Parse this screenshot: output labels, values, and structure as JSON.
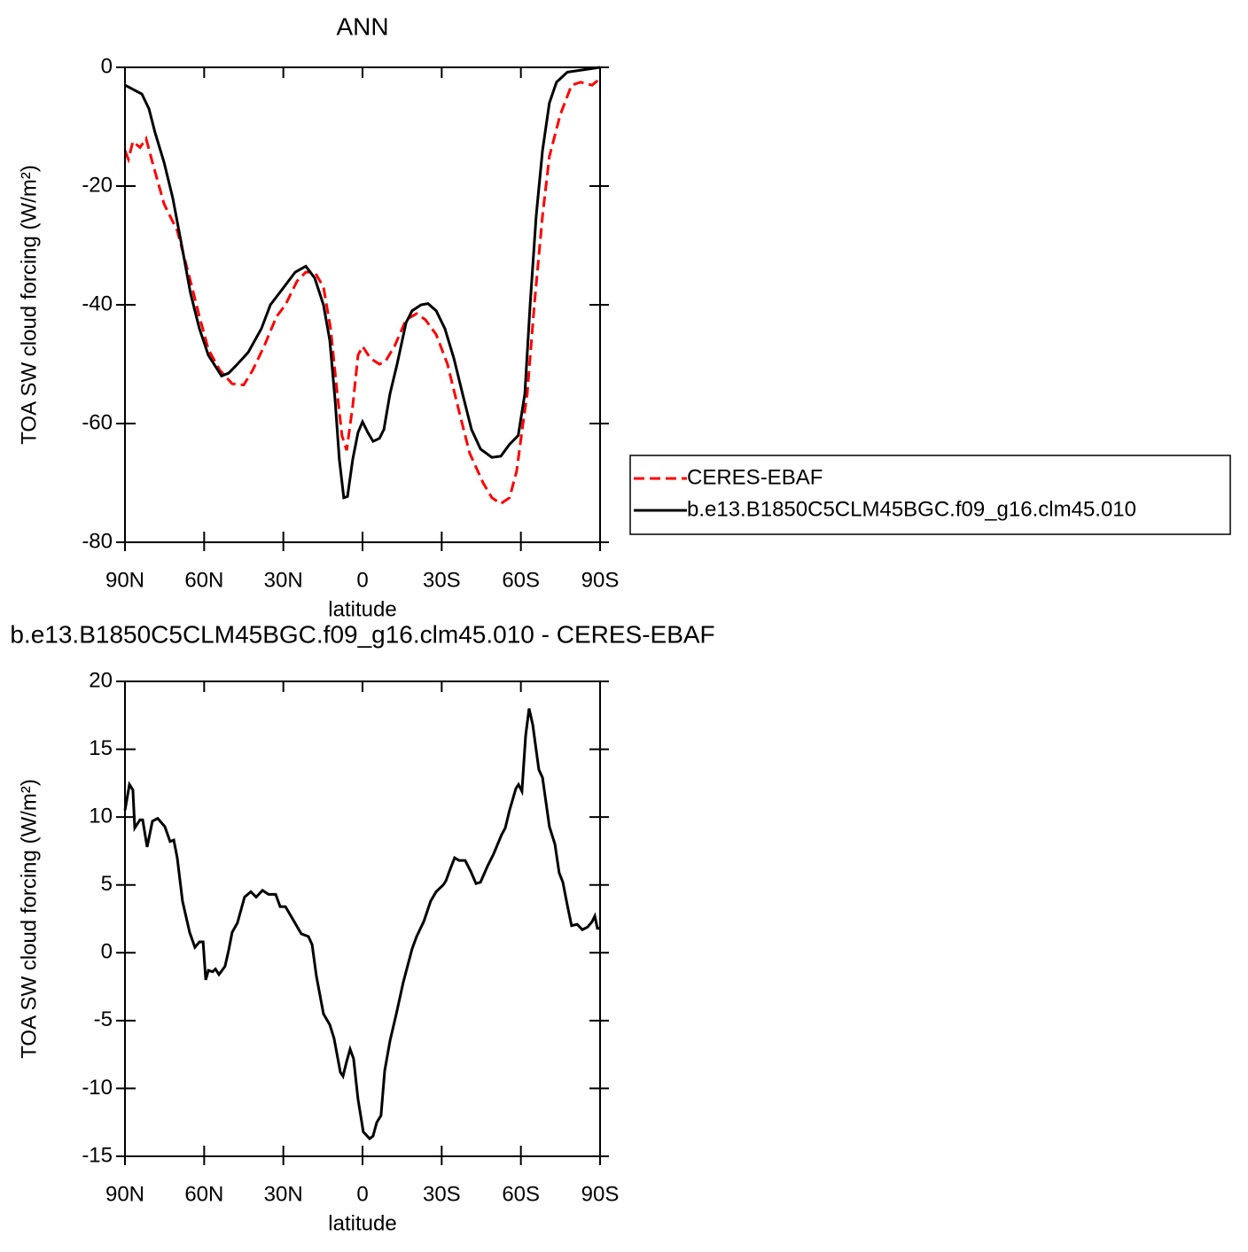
{
  "chart_data": [
    {
      "type": "line",
      "title": "ANN",
      "xlabel": "latitude",
      "ylabel": "TOA SW cloud forcing (W/m²)",
      "xlim": [
        90,
        -90
      ],
      "ylim": [
        -80,
        0
      ],
      "xticks": [
        {
          "value": 90,
          "label": "90N"
        },
        {
          "value": 60,
          "label": "60N"
        },
        {
          "value": 30,
          "label": "30N"
        },
        0,
        {
          "value": -30,
          "label": "30S"
        },
        {
          "value": -60,
          "label": "60S"
        },
        {
          "value": -90,
          "label": "90S"
        }
      ],
      "yticks": [
        0,
        -20,
        -40,
        -60,
        -80
      ],
      "legend": "right",
      "series": [
        {
          "name": "CERES-EBAF",
          "color": "#ff0000",
          "linestyle": "dashed",
          "x": [
            90,
            88.7,
            87,
            84.3,
            82,
            79.6,
            75.2,
            70.2,
            65.2,
            61.8,
            58.4,
            54.1,
            49.4,
            45,
            41.6,
            37.3,
            32.6,
            29.2,
            24.8,
            21.5,
            18.1,
            14.8,
            12.1,
            9.8,
            7.8,
            6,
            3.7,
            1.7,
            0,
            -3,
            -6.4,
            -8.7,
            -12.1,
            -16.5,
            -20.5,
            -23.8,
            -27.9,
            -32.2,
            -36.6,
            -40.6,
            -45.7,
            -49,
            -52.4,
            -55.7,
            -58.4,
            -60.8,
            -62.4,
            -65.1,
            -68.2,
            -70.8,
            -74.9,
            -79.2,
            -82.6,
            -87,
            -88.3,
            -90
          ],
          "values": [
            -14,
            -15.5,
            -12.5,
            -13.5,
            -12,
            -16,
            -23,
            -27.5,
            -36,
            -42,
            -47.5,
            -51,
            -53.3,
            -53.5,
            -51,
            -47,
            -42,
            -40,
            -36,
            -34.5,
            -34.5,
            -37,
            -44,
            -54,
            -62,
            -64.5,
            -57,
            -48.5,
            -47,
            -49,
            -50,
            -49.5,
            -47,
            -42.5,
            -41.5,
            -42.5,
            -45,
            -50,
            -58,
            -65,
            -70,
            -72.5,
            -73.5,
            -72.5,
            -68,
            -60,
            -55,
            -40,
            -25,
            -15,
            -8,
            -3,
            -2.5,
            -3,
            -2.5,
            -2
          ]
        },
        {
          "name": "b.e13.B1850C5CLM45BGC.f09_g16.clm45.010",
          "color": "#000000",
          "linestyle": "solid",
          "x": [
            90,
            83.6,
            80.9,
            78.6,
            75.2,
            71.9,
            68.5,
            65.2,
            61.8,
            58.4,
            53.4,
            50.7,
            47.4,
            43.3,
            38.3,
            34.9,
            30.6,
            25.5,
            21.5,
            18.1,
            14.8,
            12.4,
            10.4,
            8.8,
            7.1,
            5.7,
            3.7,
            1.7,
            0,
            -2,
            -4,
            -6.4,
            -8.1,
            -10.4,
            -13.1,
            -16.5,
            -18.8,
            -22.2,
            -24.8,
            -27.9,
            -31.2,
            -34.6,
            -37.9,
            -41.3,
            -44.7,
            -49,
            -52.4,
            -55.7,
            -59,
            -61.5,
            -63.5,
            -65.8,
            -68.2,
            -70.8,
            -73.5,
            -77.6,
            -90
          ],
          "values": [
            -3,
            -4.5,
            -7,
            -11,
            -16,
            -22,
            -30,
            -38,
            -44,
            -48.5,
            -52,
            -51.5,
            -50,
            -48,
            -44,
            -40,
            -37.5,
            -34.5,
            -33.5,
            -35.5,
            -40,
            -46,
            -56,
            -66,
            -72.5,
            -72.3,
            -66,
            -61.5,
            -59.7,
            -61.5,
            -63,
            -62.5,
            -61,
            -55,
            -50,
            -43,
            -41,
            -40,
            -39.8,
            -41,
            -44,
            -49,
            -55,
            -61,
            -64.3,
            -65.7,
            -65.5,
            -63.5,
            -62,
            -55,
            -40,
            -25,
            -14,
            -6,
            -2.5,
            -0.8,
            0
          ]
        }
      ]
    },
    {
      "type": "line",
      "title": "b.e13.B1850C5CLM45BGC.f09_g16.clm45.010 - CERES-EBAF",
      "xlabel": "latitude",
      "ylabel": "TOA SW cloud forcing (W/m²)",
      "xlim": [
        90,
        -90
      ],
      "ylim": [
        -15,
        20
      ],
      "xticks": [
        {
          "value": 90,
          "label": "90N"
        },
        {
          "value": 60,
          "label": "60N"
        },
        {
          "value": 30,
          "label": "30N"
        },
        0,
        {
          "value": -30,
          "label": "30S"
        },
        {
          "value": -60,
          "label": "60S"
        },
        {
          "value": -90,
          "label": "90S"
        }
      ],
      "yticks": [
        -15,
        -10,
        -5,
        0,
        5,
        10,
        15,
        20
      ],
      "color": "#000000",
      "x": [
        90,
        88.3,
        87,
        86.3,
        84.3,
        83.3,
        81.6,
        79.6,
        77.6,
        74.9,
        72.9,
        71.5,
        70.2,
        68.2,
        65.5,
        63.5,
        61.8,
        60.4,
        59.4,
        58.4,
        56.8,
        55.7,
        54.4,
        52.1,
        50.7,
        49.4,
        47.4,
        44.7,
        42.3,
        40.3,
        37.9,
        35.6,
        32.9,
        31.2,
        29.2,
        26.5,
        23.2,
        20.5,
        19.1,
        17.5,
        14.8,
        12.4,
        10.8,
        8.4,
        7.4,
        6,
        4.7,
        3.4,
        1.7,
        -0.3,
        -2.7,
        -4,
        -5.4,
        -7,
        -8.4,
        -10.4,
        -12.8,
        -15.4,
        -18.8,
        -20.5,
        -23.2,
        -25.8,
        -27.9,
        -30.6,
        -31.6,
        -32.9,
        -34.9,
        -36.6,
        -38.9,
        -41,
        -43,
        -44.7,
        -47.4,
        -49.7,
        -52.7,
        -54.1,
        -55.7,
        -58.1,
        -59.1,
        -60.4,
        -61.8,
        -63.1,
        -64.5,
        -66.8,
        -68.2,
        -70.8,
        -72.9,
        -74.5,
        -75.9,
        -77.6,
        -79.2,
        -81.3,
        -83.3,
        -85.3,
        -87,
        -88,
        -89,
        -90
      ],
      "values": [
        10.5,
        12.4,
        12,
        9.2,
        9.8,
        9.8,
        7.8,
        9.7,
        9.9,
        9.3,
        8.2,
        8.3,
        7,
        3.8,
        1.5,
        0.4,
        0.8,
        0.8,
        -2,
        -1.3,
        -1.4,
        -1.2,
        -1.6,
        -1,
        0.2,
        1.5,
        2.2,
        4.1,
        4.5,
        4.1,
        4.6,
        4.3,
        4.3,
        3.4,
        3.4,
        2.5,
        1.4,
        1.2,
        0.6,
        -1.7,
        -4.5,
        -5.3,
        -6.3,
        -8.8,
        -9.1,
        -8,
        -7.1,
        -7.8,
        -10.8,
        -13.2,
        -13.7,
        -13.5,
        -12.5,
        -12,
        -8.7,
        -6.5,
        -4.5,
        -2.2,
        0.3,
        1.2,
        2.3,
        3.8,
        4.5,
        5,
        5.3,
        6,
        7,
        6.8,
        6.8,
        6,
        5.1,
        5.2,
        6.4,
        7.3,
        8.7,
        9.2,
        10.5,
        12.1,
        12.4,
        11.9,
        16,
        18,
        16.8,
        13.5,
        12.9,
        9.3,
        8,
        5.9,
        5.2,
        3.5,
        2,
        2.1,
        1.7,
        1.9,
        2.3,
        2.7,
        1.8,
        1.8
      ]
    }
  ]
}
